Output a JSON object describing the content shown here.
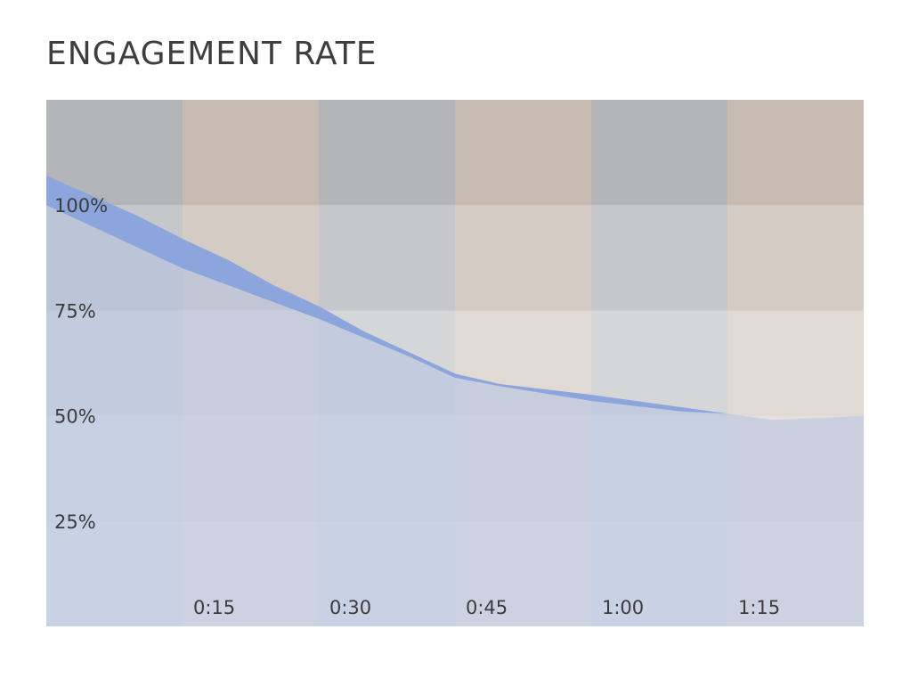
{
  "title": "ENGAGEMENT RATE",
  "chart_data": {
    "type": "area",
    "title": "ENGAGEMENT RATE",
    "xlabel": "",
    "ylabel": "",
    "x_ticks": [
      "0:15",
      "0:30",
      "0:45",
      "1:00",
      "1:15"
    ],
    "y_ticks": [
      "100%",
      "75%",
      "50%",
      "25%"
    ],
    "x_range": [
      0,
      90
    ],
    "y_range": [
      0,
      125
    ],
    "grid": true,
    "band": {
      "upper": [
        [
          0,
          107
        ],
        [
          10,
          97.5
        ],
        [
          15,
          92
        ],
        [
          20,
          87
        ],
        [
          25,
          81
        ],
        [
          30,
          76
        ],
        [
          35,
          70
        ],
        [
          40,
          65
        ],
        [
          45,
          60
        ],
        [
          50,
          57.5
        ],
        [
          60,
          55
        ],
        [
          70,
          52
        ],
        [
          75,
          50.5
        ],
        [
          80,
          49
        ],
        [
          90,
          50
        ]
      ],
      "lower": [
        [
          0,
          100
        ],
        [
          5,
          95
        ],
        [
          10,
          90
        ],
        [
          15,
          85
        ],
        [
          20,
          81
        ],
        [
          25,
          77
        ],
        [
          30,
          73
        ],
        [
          35,
          68.5
        ],
        [
          40,
          64
        ],
        [
          45,
          59
        ],
        [
          50,
          57
        ],
        [
          60,
          53.5
        ],
        [
          70,
          51
        ],
        [
          75,
          50.5
        ],
        [
          80,
          49
        ],
        [
          90,
          50
        ]
      ]
    },
    "colors": {
      "band": "#8ca6dd",
      "area": "#b5c2e3",
      "column_gray": "#b3b5b9",
      "column_tan": "#c6bab1",
      "page": "#ffffff"
    }
  }
}
